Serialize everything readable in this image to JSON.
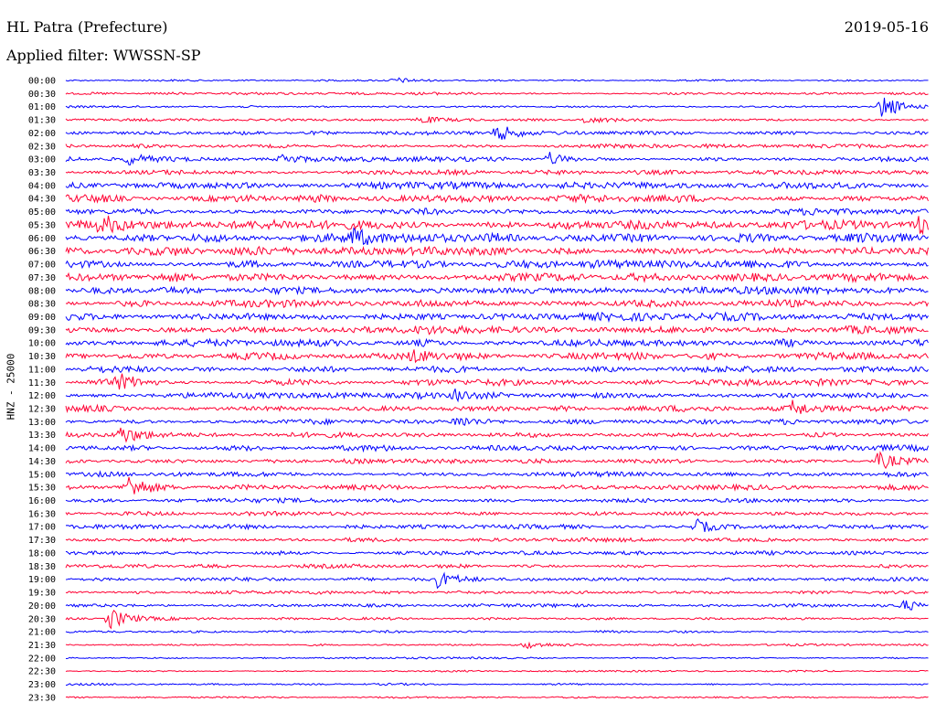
{
  "header": {
    "station": "HL Patra (Prefecture)",
    "filter": "Applied filter: WWSSN-SP",
    "date": "2019-05-16"
  },
  "chart_data": {
    "type": "line",
    "title": "HL Patra (Prefecture)",
    "subtitle": "Applied filter: WWSSN-SP",
    "date": "2019-05-16",
    "ylabel": "HNZ - 25000",
    "colors": {
      "even_rows": "#0000ff",
      "odd_rows": "#ff0033"
    },
    "categories": [
      "00:00",
      "00:30",
      "01:00",
      "01:30",
      "02:00",
      "02:30",
      "03:00",
      "03:30",
      "04:00",
      "04:30",
      "05:00",
      "05:30",
      "06:00",
      "06:30",
      "07:00",
      "07:30",
      "08:00",
      "08:30",
      "09:00",
      "09:30",
      "10:00",
      "10:30",
      "11:00",
      "11:30",
      "12:00",
      "12:30",
      "13:00",
      "13:30",
      "14:00",
      "14:30",
      "15:00",
      "15:30",
      "16:00",
      "16:30",
      "17:00",
      "17:30",
      "18:00",
      "18:30",
      "19:00",
      "19:30",
      "20:00",
      "20:30",
      "21:00",
      "21:30",
      "22:00",
      "22:30",
      "23:00",
      "23:30"
    ],
    "noise_level": [
      0.8,
      1.2,
      1.0,
      1.2,
      1.8,
      1.8,
      2.2,
      2.2,
      3.2,
      3.6,
      3.6,
      4.2,
      4.4,
      4.0,
      4.2,
      3.8,
      3.4,
      3.4,
      3.6,
      4.0,
      3.6,
      3.2,
      3.0,
      3.0,
      2.8,
      2.8,
      2.6,
      2.4,
      2.6,
      2.6,
      2.4,
      2.4,
      2.0,
      2.0,
      2.0,
      2.0,
      1.8,
      1.8,
      1.8,
      1.6,
      1.6,
      1.2,
      1.2,
      1.0,
      0.8,
      0.8,
      1.0,
      0.8
    ],
    "events": [
      {
        "row": 0,
        "t": 0.38,
        "amp": 3
      },
      {
        "row": 2,
        "t": 0.944,
        "amp": 16
      },
      {
        "row": 3,
        "t": 0.41,
        "amp": 5
      },
      {
        "row": 3,
        "t": 0.6,
        "amp": 4
      },
      {
        "row": 4,
        "t": 0.5,
        "amp": 9
      },
      {
        "row": 6,
        "t": 0.07,
        "amp": 6
      },
      {
        "row": 6,
        "t": 0.25,
        "amp": 6
      },
      {
        "row": 6,
        "t": 0.56,
        "amp": 7
      },
      {
        "row": 11,
        "t": 0.04,
        "amp": 9
      },
      {
        "row": 11,
        "t": 0.985,
        "amp": 10
      },
      {
        "row": 12,
        "t": 0.33,
        "amp": 9
      },
      {
        "row": 21,
        "t": 0.4,
        "amp": 8
      },
      {
        "row": 23,
        "t": 0.06,
        "amp": 8
      },
      {
        "row": 24,
        "t": 0.45,
        "amp": 8
      },
      {
        "row": 25,
        "t": 0.84,
        "amp": 8
      },
      {
        "row": 26,
        "t": 0.45,
        "amp": 8
      },
      {
        "row": 27,
        "t": 0.06,
        "amp": 10
      },
      {
        "row": 29,
        "t": 0.94,
        "amp": 10
      },
      {
        "row": 31,
        "t": 0.07,
        "amp": 13
      },
      {
        "row": 34,
        "t": 0.73,
        "amp": 8
      },
      {
        "row": 38,
        "t": 0.43,
        "amp": 8
      },
      {
        "row": 40,
        "t": 0.97,
        "amp": 6
      },
      {
        "row": 41,
        "t": 0.05,
        "amp": 13
      },
      {
        "row": 43,
        "t": 0.53,
        "amp": 4
      }
    ]
  }
}
